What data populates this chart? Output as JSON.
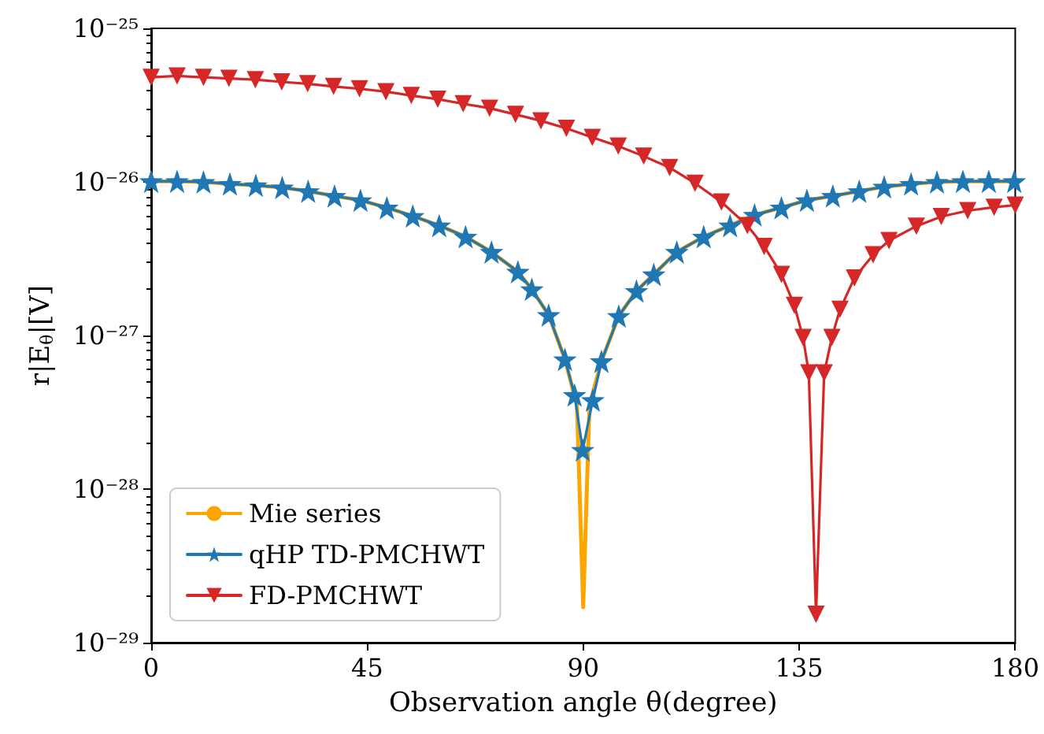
{
  "chart_data": {
    "type": "line",
    "xlabel": "Observation angle θ(degree)",
    "ylabel": "r|E$_{θ}$|[V]",
    "xlim": [
      0,
      180
    ],
    "xticks": [
      0,
      45,
      90,
      135,
      180
    ],
    "ylim": [
      1e-29,
      1e-25
    ],
    "yticks": [
      {
        "value": 1e-29,
        "label": "10⁻²⁹"
      },
      {
        "value": 1e-28,
        "label": "10⁻²⁸"
      },
      {
        "value": 1e-27,
        "label": "10⁻²⁷"
      },
      {
        "value": 1e-26,
        "label": "10⁻²⁶"
      },
      {
        "value": 1e-25,
        "label": "10⁻²⁵"
      }
    ],
    "log": "y",
    "grid": false,
    "legend": "bottom left",
    "series": [
      {
        "name": "Mie series",
        "color": "#ffa500",
        "marker": "none",
        "x": [
          0,
          5.4,
          10.9,
          16.4,
          21.8,
          27.3,
          32.7,
          38.2,
          43.6,
          49.1,
          54.5,
          60,
          65.5,
          70.9,
          76.4,
          79.3,
          82.8,
          86.2,
          88.7,
          90,
          91.3,
          93.8,
          97.4,
          101.1,
          104.7,
          109.5,
          115.1,
          120.6,
          125.7,
          131.3,
          136.6,
          142,
          147.5,
          152.7,
          158.3,
          163.7,
          169.1,
          174.5,
          180
        ],
        "values": [
          1.01e-26,
          1.01e-26,
          1e-26,
          9.7e-27,
          9.5e-27,
          9.2e-27,
          8.7e-27,
          8.1e-27,
          7.6e-27,
          6.8e-27,
          6e-27,
          5.2e-27,
          4.4e-27,
          3.5e-27,
          2.6e-27,
          2e-27,
          1.36e-27,
          7e-28,
          3.5e-28,
          1.7e-29,
          3.5e-28,
          6.8e-28,
          1.34e-27,
          1.95e-27,
          2.5e-27,
          3.5e-27,
          4.4e-27,
          5.2e-27,
          6.1e-27,
          6.8e-27,
          7.6e-27,
          8.1e-27,
          8.7e-27,
          9.3e-27,
          9.7e-27,
          1e-26,
          1.01e-26,
          1.01e-26,
          1.01e-26
        ]
      },
      {
        "name": "qHP TD-PMCHWT",
        "color": "#1f77b4",
        "marker": "star",
        "x": [
          0,
          5.4,
          10.9,
          16.4,
          21.8,
          27.3,
          32.7,
          38.2,
          43.6,
          49.1,
          54.5,
          60,
          65.5,
          70.9,
          76.4,
          79.3,
          82.8,
          86.2,
          88.2,
          89.9,
          92,
          93.8,
          97.4,
          101.1,
          104.7,
          109.5,
          115.1,
          120.6,
          125.7,
          131.3,
          136.6,
          142,
          147.5,
          152.7,
          158.3,
          163.7,
          169.1,
          174.5,
          179.8
        ],
        "values": [
          1.01e-26,
          1.01e-26,
          1e-26,
          9.7e-27,
          9.5e-27,
          9.2e-27,
          8.7e-27,
          8.1e-27,
          7.6e-27,
          6.8e-27,
          6e-27,
          5.2e-27,
          4.4e-27,
          3.5e-27,
          2.6e-27,
          2e-27,
          1.36e-27,
          7e-28,
          4.1e-28,
          1.8e-28,
          3.8e-28,
          6.8e-28,
          1.34e-27,
          1.95e-27,
          2.5e-27,
          3.5e-27,
          4.4e-27,
          5.2e-27,
          6.1e-27,
          6.8e-27,
          7.6e-27,
          8.1e-27,
          8.7e-27,
          9.3e-27,
          9.7e-27,
          1e-26,
          1.01e-26,
          1.01e-26,
          1.01e-26
        ]
      },
      {
        "name": "FD-PMCHWT",
        "color": "#d62728",
        "marker": "triangle",
        "x": [
          0,
          5.4,
          10.9,
          16.2,
          21.7,
          27.2,
          32.6,
          38,
          43.4,
          48.9,
          54.2,
          59.7,
          65,
          70.5,
          75.9,
          81.2,
          86.5,
          91.9,
          97.3,
          102.6,
          108,
          113.3,
          118.8,
          124.2,
          127.7,
          131.3,
          134,
          135.8,
          137,
          138.5,
          140.2,
          141.8,
          143.5,
          146.5,
          150.4,
          153.7,
          159.4,
          164.6,
          170.1,
          175.6,
          180
        ],
        "values": [
          4.8e-26,
          4.9e-26,
          4.8e-26,
          4.72e-26,
          4.63e-26,
          4.48e-26,
          4.36e-26,
          4.18e-26,
          4.04e-26,
          3.87e-26,
          3.65e-26,
          3.46e-26,
          3.23e-26,
          3.02e-26,
          2.75e-26,
          2.5e-26,
          2.23e-26,
          1.95e-26,
          1.71e-26,
          1.47e-26,
          1.24e-26,
          9.8e-27,
          7.4e-27,
          5.2e-27,
          3.8e-27,
          2.5e-27,
          1.57e-27,
          9.7e-28,
          5.7e-28,
          1.53e-29,
          5.7e-28,
          9.7e-28,
          1.48e-27,
          2.37e-27,
          3.35e-27,
          4.15e-27,
          5.15e-27,
          5.95e-27,
          6.5e-27,
          6.84e-27,
          7.06e-27
        ]
      }
    ]
  }
}
